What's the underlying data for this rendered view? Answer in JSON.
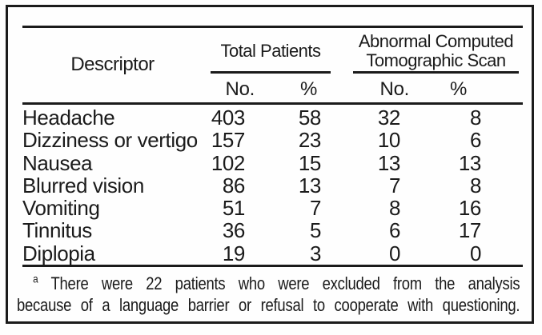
{
  "header": {
    "descriptor": "Descriptor",
    "group1": "Total Patients",
    "group2_line1": "Abnormal Computed",
    "group2_line2": "Tomographic Scan",
    "sub_no_1": "No.",
    "sub_pct_1": "%",
    "sub_no_2": "No.",
    "sub_pct_2": "%"
  },
  "rows": [
    {
      "descriptor": "Headache",
      "total_no": 403,
      "total_pct": 58,
      "scan_no": 32,
      "scan_pct": 8
    },
    {
      "descriptor": "Dizziness or vertigo",
      "total_no": 157,
      "total_pct": 23,
      "scan_no": 10,
      "scan_pct": 6
    },
    {
      "descriptor": "Nausea",
      "total_no": 102,
      "total_pct": 15,
      "scan_no": 13,
      "scan_pct": 13
    },
    {
      "descriptor": "Blurred vision",
      "total_no": 86,
      "total_pct": 13,
      "scan_no": 7,
      "scan_pct": 8
    },
    {
      "descriptor": "Vomiting",
      "total_no": 51,
      "total_pct": 7,
      "scan_no": 8,
      "scan_pct": 16
    },
    {
      "descriptor": "Tinnitus",
      "total_no": 36,
      "total_pct": 5,
      "scan_no": 6,
      "scan_pct": 17
    },
    {
      "descriptor": "Diplopia",
      "total_no": 19,
      "total_pct": 3,
      "scan_no": 0,
      "scan_pct": 0
    }
  ],
  "footnote": {
    "marker": "a",
    "line1": "There were 22 patients who were excluded from the analysis",
    "line2": "because of a language barrier or refusal to cooperate with questioning."
  },
  "colors": {
    "ink": "#1b1b1b",
    "paper": "#fefefe"
  }
}
